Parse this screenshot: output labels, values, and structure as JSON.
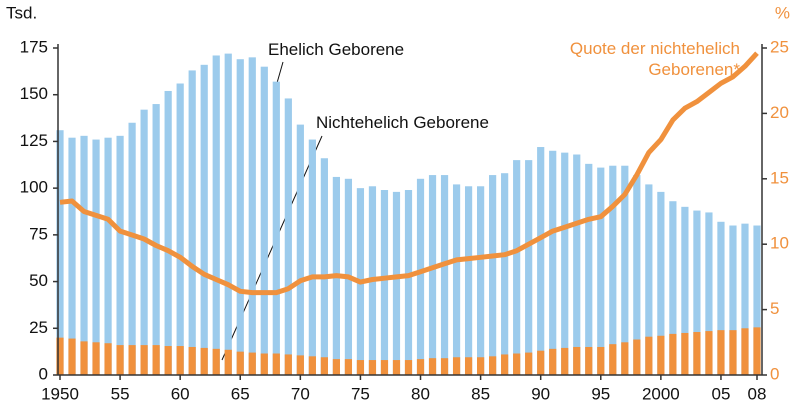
{
  "chart_data": {
    "type": "bar",
    "y_label": "Tsd.",
    "y2_label": "%",
    "categories": [
      "1950",
      null,
      null,
      null,
      null,
      "55",
      null,
      null,
      null,
      null,
      "60",
      null,
      null,
      null,
      null,
      "65",
      null,
      null,
      null,
      null,
      "70",
      null,
      null,
      null,
      null,
      "75",
      null,
      null,
      null,
      null,
      "80",
      null,
      null,
      null,
      null,
      "85",
      null,
      null,
      null,
      null,
      "90",
      null,
      null,
      null,
      null,
      "95",
      null,
      null,
      null,
      null,
      "2000",
      null,
      null,
      null,
      null,
      "05",
      null,
      null,
      "08"
    ],
    "series": [
      {
        "name": "Ehelich Geborene",
        "color": "#9ccbec",
        "values": [
          131,
          127,
          128,
          126,
          127,
          128,
          135,
          142,
          145,
          152,
          156,
          163,
          166,
          171,
          172,
          169,
          170,
          165,
          157,
          148,
          134,
          126,
          116,
          106,
          105,
          100,
          101,
          99,
          98,
          99,
          105,
          107,
          107,
          102,
          101,
          101,
          107,
          108,
          115,
          115,
          122,
          120,
          119,
          118,
          113,
          111,
          112,
          112,
          107,
          102,
          98,
          93,
          90,
          88,
          87,
          82,
          80,
          81,
          80
        ]
      },
      {
        "name": "Nichtehelich Geborene",
        "color": "#f0913d",
        "values": [
          20,
          19.5,
          18,
          17.5,
          17,
          16,
          16,
          16,
          16,
          15.5,
          15.5,
          15,
          14.5,
          14,
          13.5,
          12.5,
          12,
          11.5,
          11.5,
          11,
          10.5,
          10,
          9.5,
          8.5,
          8.5,
          8,
          8,
          8,
          8,
          8,
          8.5,
          9,
          9,
          9.5,
          9.5,
          9.5,
          10,
          11,
          11.5,
          12,
          13,
          14,
          14.5,
          15,
          15,
          15,
          16.5,
          17.5,
          19,
          20.5,
          21,
          22,
          22.5,
          23,
          23.5,
          24,
          24,
          25,
          25.5
        ]
      },
      {
        "name": "Quote der nichtehelich Geborenen*",
        "color": "#f0913d",
        "type": "line",
        "axis": "y2",
        "values": [
          13.2,
          13.3,
          12.5,
          12.2,
          11.9,
          11,
          10.7,
          10.4,
          9.9,
          9.5,
          9,
          8.3,
          7.7,
          7.3,
          6.9,
          6.4,
          6.3,
          6.3,
          6.3,
          6.6,
          7.2,
          7.5,
          7.5,
          7.6,
          7.5,
          7.1,
          7.3,
          7.4,
          7.5,
          7.6,
          7.9,
          8.2,
          8.5,
          8.8,
          8.9,
          9.0,
          9.1,
          9.2,
          9.5,
          10.0,
          10.5,
          11.0,
          11.3,
          11.6,
          11.9,
          12.1,
          12.9,
          13.8,
          15.3,
          17.0,
          18.0,
          19.5,
          20.4,
          20.9,
          21.6,
          22.3,
          22.8,
          23.6,
          24.6
        ]
      }
    ],
    "ylim": [
      0,
      175
    ],
    "yticks": [
      0,
      25,
      50,
      75,
      100,
      125,
      150,
      175
    ],
    "y2lim": [
      0,
      25
    ],
    "y2ticks": [
      0,
      5,
      10,
      15,
      20,
      25
    ]
  }
}
